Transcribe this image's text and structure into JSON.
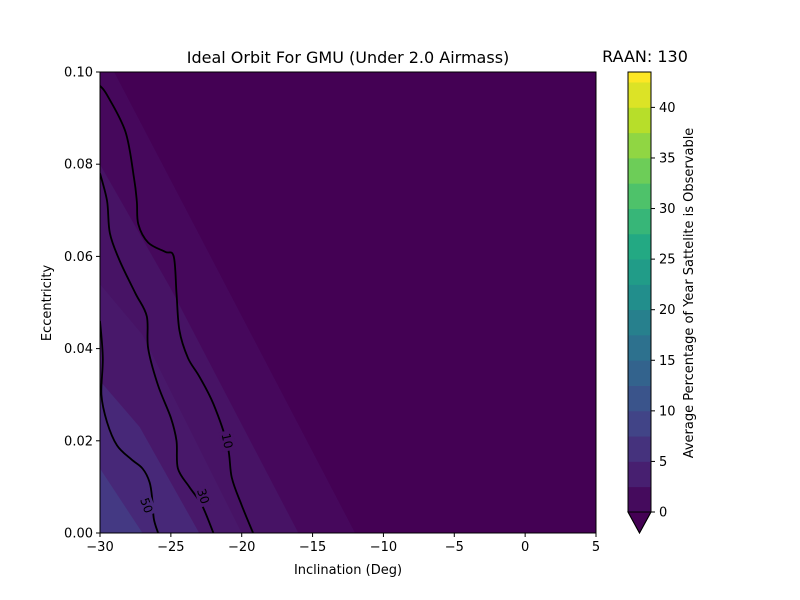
{
  "chart_data": {
    "type": "contourf",
    "title": "Ideal Orbit For GMU (Under 2.0 Airmass)",
    "corner_title": "RAAN: 130",
    "xlabel": "Inclination (Deg)",
    "ylabel": "Eccentricity",
    "xlim": [
      -30,
      5
    ],
    "ylim": [
      0,
      0.1
    ],
    "xticks": [
      -30,
      -25,
      -20,
      -15,
      -10,
      -5,
      0,
      5
    ],
    "xtick_labels": [
      "−30",
      "−25",
      "−20",
      "−15",
      "−10",
      "−5",
      "0",
      "5"
    ],
    "yticks": [
      0.0,
      0.02,
      0.04,
      0.06,
      0.08,
      0.1
    ],
    "ytick_labels": [
      "0.00",
      "0.02",
      "0.04",
      "0.06",
      "0.08",
      "0.10"
    ],
    "grid": false,
    "colormap": "viridis",
    "colorbar": {
      "label": "Average Percentage of Year Sattelite is Observable",
      "range": [
        0,
        43.5
      ],
      "ticks": [
        0,
        5,
        10,
        15,
        20,
        25,
        30,
        35,
        40
      ],
      "tick_labels": [
        "0",
        "5",
        "10",
        "15",
        "20",
        "25",
        "30",
        "35",
        "40"
      ],
      "level_step": 2.5,
      "extend": "min"
    },
    "background_color": "#440154",
    "filled_bands": [
      {
        "level": 1,
        "color": "#46085c",
        "boundary": [
          [
            -30,
            0.1
          ],
          [
            -29.0,
            0.1
          ],
          [
            -12.0,
            0.0
          ],
          [
            -30,
            0.0
          ]
        ]
      },
      {
        "level": 2,
        "color": "#471365",
        "boundary": [
          [
            -30,
            0.08
          ],
          [
            -25.0,
            0.053
          ],
          [
            -16.0,
            0.0
          ],
          [
            -30,
            0.0
          ]
        ]
      },
      {
        "level": 3,
        "color": "#48186a",
        "boundary": [
          [
            -30,
            0.054
          ],
          [
            -27.0,
            0.043
          ],
          [
            -20.0,
            0.0
          ],
          [
            -30,
            0.0
          ]
        ]
      },
      {
        "level": 4,
        "color": "#472878",
        "boundary": [
          [
            -30,
            0.033
          ],
          [
            -27.2,
            0.023
          ],
          [
            -23.0,
            0.0
          ],
          [
            -30,
            0.0
          ]
        ]
      },
      {
        "level": 5,
        "color": "#443983",
        "boundary": [
          [
            -30,
            0.014
          ],
          [
            -27.0,
            0.0
          ],
          [
            -30,
            0.0
          ]
        ]
      }
    ],
    "contour_lines": [
      {
        "label": "10",
        "label_at": [
          -21.0,
          0.02
        ],
        "points": [
          [
            -30.0,
            0.097
          ],
          [
            -29.5,
            0.095
          ],
          [
            -28.2,
            0.087
          ],
          [
            -27.6,
            0.077
          ],
          [
            -27.4,
            0.072
          ],
          [
            -27.3,
            0.067
          ],
          [
            -26.6,
            0.063
          ],
          [
            -25.4,
            0.061
          ],
          [
            -24.8,
            0.06
          ],
          [
            -24.6,
            0.052
          ],
          [
            -24.4,
            0.044
          ],
          [
            -23.8,
            0.038
          ],
          [
            -23.0,
            0.034
          ],
          [
            -22.0,
            0.028
          ],
          [
            -21.0,
            0.019
          ],
          [
            -20.7,
            0.012
          ],
          [
            -20.0,
            0.006
          ],
          [
            -19.2,
            0.0
          ]
        ]
      },
      {
        "label": "30",
        "label_at": [
          -22.7,
          0.008
        ],
        "points": [
          [
            -30.0,
            0.078
          ],
          [
            -29.5,
            0.072
          ],
          [
            -29.3,
            0.065
          ],
          [
            -28.6,
            0.059
          ],
          [
            -27.5,
            0.052
          ],
          [
            -26.7,
            0.047
          ],
          [
            -26.6,
            0.04
          ],
          [
            -25.9,
            0.032
          ],
          [
            -25.0,
            0.025
          ],
          [
            -24.6,
            0.02
          ],
          [
            -24.5,
            0.014
          ],
          [
            -23.7,
            0.01
          ],
          [
            -22.8,
            0.006
          ],
          [
            -22.0,
            0.0
          ]
        ]
      },
      {
        "label": "50",
        "label_at": [
          -26.7,
          0.006
        ],
        "points": [
          [
            -30.0,
            0.046
          ],
          [
            -29.8,
            0.038
          ],
          [
            -29.9,
            0.03
          ],
          [
            -29.5,
            0.024
          ],
          [
            -28.8,
            0.019
          ],
          [
            -27.8,
            0.016
          ],
          [
            -27.0,
            0.014
          ],
          [
            -26.5,
            0.011
          ],
          [
            -26.3,
            0.007
          ],
          [
            -26.2,
            0.003
          ],
          [
            -25.9,
            0.0
          ]
        ]
      }
    ]
  }
}
